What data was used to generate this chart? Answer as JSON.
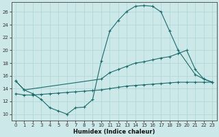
{
  "xlabel": "Humidex (Indice chaleur)",
  "xlim": [
    -0.5,
    23.5
  ],
  "ylim": [
    9.0,
    27.5
  ],
  "yticks": [
    10,
    12,
    14,
    16,
    18,
    20,
    22,
    24,
    26
  ],
  "xticks": [
    0,
    1,
    2,
    3,
    4,
    5,
    6,
    7,
    8,
    9,
    10,
    11,
    12,
    13,
    14,
    15,
    16,
    17,
    18,
    19,
    20,
    21,
    22,
    23
  ],
  "bg_color": "#cde8e8",
  "grid_color": "#b0d8d8",
  "line_color": "#1a6b6b",
  "series": {
    "top": [
      [
        0,
        15.2
      ],
      [
        1,
        13.8
      ],
      [
        2,
        13.2
      ],
      [
        3,
        12.3
      ],
      [
        4,
        11.0
      ],
      [
        5,
        10.5
      ],
      [
        6,
        10.0
      ],
      [
        7,
        11.0
      ],
      [
        8,
        11.1
      ],
      [
        9,
        12.3
      ],
      [
        10,
        18.3
      ],
      [
        11,
        23.0
      ],
      [
        12,
        24.7
      ],
      [
        13,
        26.1
      ],
      [
        14,
        26.9
      ],
      [
        15,
        27.0
      ],
      [
        16,
        26.9
      ],
      [
        17,
        26.0
      ],
      [
        18,
        23.0
      ],
      [
        19,
        20.0
      ],
      [
        21,
        16.2
      ],
      [
        22,
        15.5
      ],
      [
        23,
        15.0
      ]
    ],
    "mid": [
      [
        0,
        15.2
      ],
      [
        1,
        13.8
      ],
      [
        10,
        15.5
      ],
      [
        11,
        16.5
      ],
      [
        12,
        17.0
      ],
      [
        13,
        17.5
      ],
      [
        14,
        18.0
      ],
      [
        15,
        18.2
      ],
      [
        16,
        18.5
      ],
      [
        17,
        18.8
      ],
      [
        18,
        19.0
      ],
      [
        19,
        19.5
      ],
      [
        20,
        20.0
      ],
      [
        21,
        17.0
      ],
      [
        22,
        15.5
      ],
      [
        23,
        15.0
      ]
    ],
    "bottom": [
      [
        0,
        13.2
      ],
      [
        1,
        13.0
      ],
      [
        2,
        13.0
      ],
      [
        3,
        13.1
      ],
      [
        4,
        13.2
      ],
      [
        5,
        13.3
      ],
      [
        6,
        13.4
      ],
      [
        7,
        13.5
      ],
      [
        8,
        13.6
      ],
      [
        9,
        13.7
      ],
      [
        10,
        13.8
      ],
      [
        11,
        14.0
      ],
      [
        12,
        14.2
      ],
      [
        13,
        14.4
      ],
      [
        14,
        14.5
      ],
      [
        15,
        14.6
      ],
      [
        16,
        14.7
      ],
      [
        17,
        14.8
      ],
      [
        18,
        14.9
      ],
      [
        19,
        15.0
      ],
      [
        20,
        15.0
      ],
      [
        21,
        15.0
      ],
      [
        22,
        15.0
      ],
      [
        23,
        15.0
      ]
    ]
  }
}
